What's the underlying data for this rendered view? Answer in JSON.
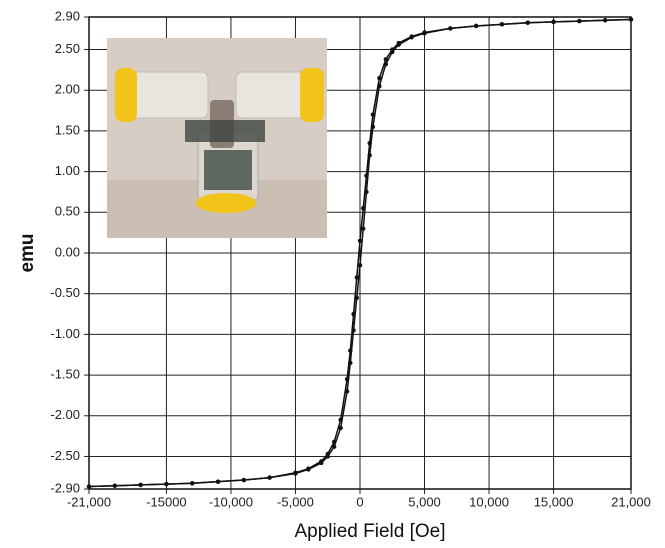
{
  "chart_data": {
    "type": "line",
    "x_label": "Applied Field [Oe]",
    "y_label": "emu",
    "xlim": [
      -21000,
      21000
    ],
    "ylim": [
      -2.9,
      2.9
    ],
    "xticks": [
      {
        "value": -21000,
        "label": "-21,000"
      },
      -15000,
      {
        "value": -10000,
        "label": "-10,000"
      },
      {
        "value": -5000,
        "label": "-5,000"
      },
      0,
      {
        "value": 5000,
        "label": "5,000"
      },
      {
        "value": 10000,
        "label": "10,000"
      },
      {
        "value": 15000,
        "label": "15,000"
      },
      {
        "value": 21000,
        "label": "21,000"
      }
    ],
    "yticks": [
      {
        "value": 2.9,
        "label": "2.90"
      },
      {
        "value": 2.5,
        "label": "2.50"
      },
      {
        "value": 2,
        "label": "2.00"
      },
      {
        "value": 1.5,
        "label": "1.50"
      },
      {
        "value": 1,
        "label": "1.00"
      },
      {
        "value": 0.5,
        "label": "0.50"
      },
      {
        "value": 0,
        "label": "0.00"
      },
      {
        "value": -0.5,
        "label": "-0.50"
      },
      {
        "value": -1,
        "label": "-1.00"
      },
      {
        "value": -1.5,
        "label": "-1.50"
      },
      {
        "value": -2,
        "label": "-2.00"
      },
      {
        "value": -2.5,
        "label": "-2.50"
      },
      {
        "value": -2.9,
        "label": "-2.90"
      }
    ],
    "grid": true,
    "series": [
      {
        "color": "#111111",
        "x": [
          21000,
          19000,
          17000,
          15000,
          13000,
          11000,
          9000,
          7000,
          5000,
          4000,
          3000,
          2500,
          2000,
          1500,
          1000,
          750,
          500,
          250,
          0,
          -250,
          -500,
          -750,
          -1000,
          -1500,
          -2000,
          -2500,
          -3000,
          -4000,
          -5000,
          -7000,
          -9000,
          -11000,
          -13000,
          -15000,
          -17000,
          -19000,
          -21000
        ],
        "values": [
          2.87,
          2.86,
          2.85,
          2.84,
          2.83,
          2.81,
          2.79,
          2.76,
          2.71,
          2.66,
          2.58,
          2.5,
          2.38,
          2.15,
          1.7,
          1.35,
          0.95,
          0.55,
          0.15,
          -0.3,
          -0.75,
          -1.2,
          -1.55,
          -2.05,
          -2.32,
          -2.47,
          -2.56,
          -2.65,
          -2.7,
          -2.76,
          -2.79,
          -2.81,
          -2.83,
          -2.84,
          -2.85,
          -2.86,
          -2.87
        ]
      },
      {
        "color": "#111111",
        "x": [
          -21000,
          -19000,
          -17000,
          -15000,
          -13000,
          -11000,
          -9000,
          -7000,
          -5000,
          -4000,
          -3000,
          -2500,
          -2000,
          -1500,
          -1000,
          -750,
          -500,
          -250,
          0,
          250,
          500,
          750,
          1000,
          1500,
          2000,
          2500,
          3000,
          4000,
          5000,
          7000,
          9000,
          11000,
          13000,
          15000,
          17000,
          19000,
          21000
        ],
        "values": [
          -2.87,
          -2.86,
          -2.85,
          -2.84,
          -2.83,
          -2.81,
          -2.79,
          -2.76,
          -2.71,
          -2.66,
          -2.58,
          -2.5,
          -2.38,
          -2.15,
          -1.7,
          -1.35,
          -0.95,
          -0.55,
          -0.15,
          0.3,
          0.75,
          1.2,
          1.55,
          2.05,
          2.32,
          2.47,
          2.56,
          2.65,
          2.7,
          2.76,
          2.79,
          2.81,
          2.83,
          2.84,
          2.85,
          2.86,
          2.87
        ]
      }
    ]
  }
}
